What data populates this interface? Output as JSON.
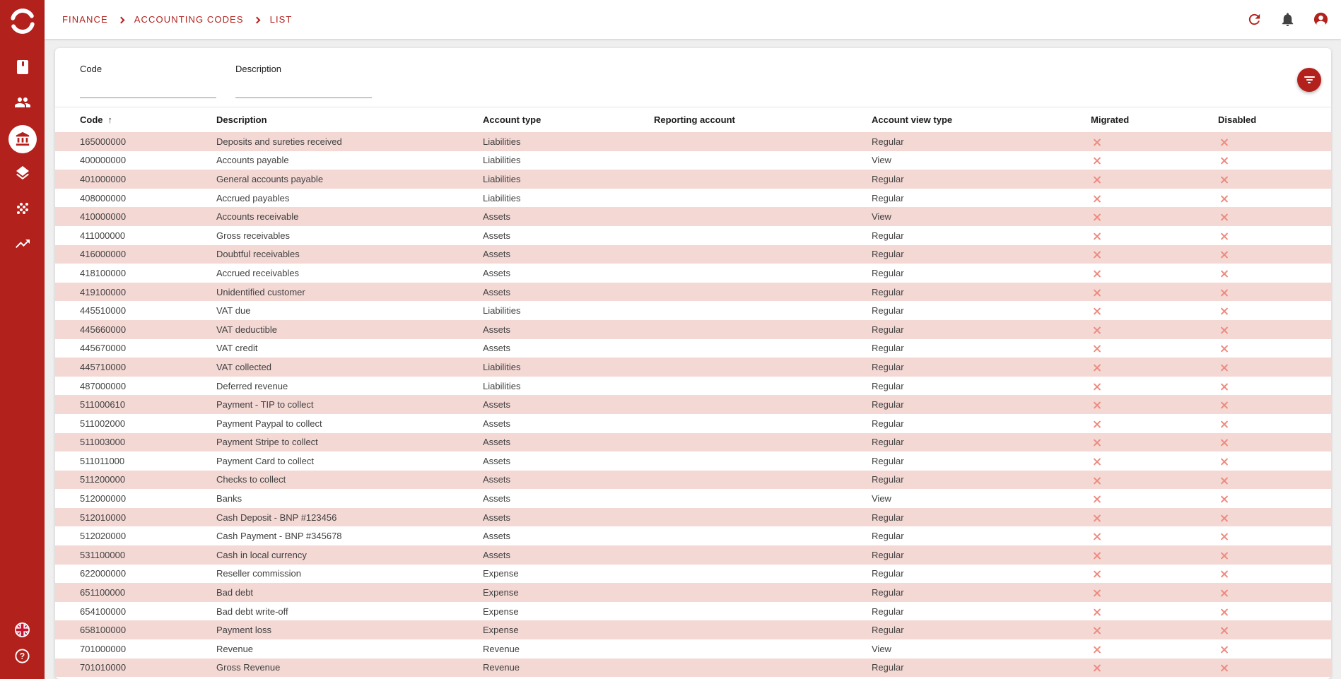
{
  "colors": {
    "brand": "#b3211c",
    "pink_row": "#f3d8d4",
    "x_mark": "#ee8a7f",
    "page_bg": "#efefef",
    "bell": "#424242",
    "header_text": "#1b1b1b",
    "row_text": "#414141"
  },
  "sidebar": {
    "logo_icon": "brand-logo",
    "items": [
      {
        "icon": "book-icon",
        "active": false
      },
      {
        "icon": "people-icon",
        "active": false
      },
      {
        "icon": "bank-icon",
        "active": true
      },
      {
        "icon": "layers-icon",
        "active": false
      },
      {
        "icon": "grain-icon",
        "active": false
      },
      {
        "icon": "trending-up-icon",
        "active": false
      }
    ],
    "bottom_items": [
      {
        "icon": "uk-flag-icon"
      },
      {
        "icon": "help-icon"
      }
    ]
  },
  "appbar": {
    "breadcrumb": [
      "FINANCE",
      "ACCOUNTING CODES",
      "LIST"
    ],
    "icons": [
      "refresh-icon",
      "notifications-icon",
      "account-icon"
    ]
  },
  "filters": {
    "fields": [
      {
        "label": "Code",
        "value": ""
      },
      {
        "label": "Description",
        "value": ""
      }
    ],
    "filter_button_icon": "filter-icon"
  },
  "table": {
    "sort_indicator": "↑",
    "columns": [
      {
        "label": "Code",
        "sorted": "ascending"
      },
      {
        "label": "Description"
      },
      {
        "label": "Account type"
      },
      {
        "label": "Reporting account"
      },
      {
        "label": "Account view type"
      },
      {
        "label": "Migrated"
      },
      {
        "label": "Disabled"
      }
    ],
    "rows": [
      {
        "code": "165000000",
        "description": "Deposits and sureties received",
        "account_type": "Liabilities",
        "reporting_account": "",
        "view_type": "Regular",
        "migrated": false,
        "disabled": false
      },
      {
        "code": "400000000",
        "description": "Accounts payable",
        "account_type": "Liabilities",
        "reporting_account": "",
        "view_type": "View",
        "migrated": false,
        "disabled": false
      },
      {
        "code": "401000000",
        "description": "General accounts payable",
        "account_type": "Liabilities",
        "reporting_account": "",
        "view_type": "Regular",
        "migrated": false,
        "disabled": false
      },
      {
        "code": "408000000",
        "description": "Accrued payables",
        "account_type": "Liabilities",
        "reporting_account": "",
        "view_type": "Regular",
        "migrated": false,
        "disabled": false
      },
      {
        "code": "410000000",
        "description": "Accounts receivable",
        "account_type": "Assets",
        "reporting_account": "",
        "view_type": "View",
        "migrated": false,
        "disabled": false
      },
      {
        "code": "411000000",
        "description": "Gross receivables",
        "account_type": "Assets",
        "reporting_account": "",
        "view_type": "Regular",
        "migrated": false,
        "disabled": false
      },
      {
        "code": "416000000",
        "description": "Doubtful receivables",
        "account_type": "Assets",
        "reporting_account": "",
        "view_type": "Regular",
        "migrated": false,
        "disabled": false
      },
      {
        "code": "418100000",
        "description": "Accrued receivables",
        "account_type": "Assets",
        "reporting_account": "",
        "view_type": "Regular",
        "migrated": false,
        "disabled": false
      },
      {
        "code": "419100000",
        "description": "Unidentified customer",
        "account_type": "Assets",
        "reporting_account": "",
        "view_type": "Regular",
        "migrated": false,
        "disabled": false
      },
      {
        "code": "445510000",
        "description": "VAT due",
        "account_type": "Liabilities",
        "reporting_account": "",
        "view_type": "Regular",
        "migrated": false,
        "disabled": false
      },
      {
        "code": "445660000",
        "description": "VAT deductible",
        "account_type": "Assets",
        "reporting_account": "",
        "view_type": "Regular",
        "migrated": false,
        "disabled": false
      },
      {
        "code": "445670000",
        "description": "VAT credit",
        "account_type": "Assets",
        "reporting_account": "",
        "view_type": "Regular",
        "migrated": false,
        "disabled": false
      },
      {
        "code": "445710000",
        "description": "VAT collected",
        "account_type": "Liabilities",
        "reporting_account": "",
        "view_type": "Regular",
        "migrated": false,
        "disabled": false
      },
      {
        "code": "487000000",
        "description": "Deferred revenue",
        "account_type": "Liabilities",
        "reporting_account": "",
        "view_type": "Regular",
        "migrated": false,
        "disabled": false
      },
      {
        "code": "511000610",
        "description": "Payment - TIP to collect",
        "account_type": "Assets",
        "reporting_account": "",
        "view_type": "Regular",
        "migrated": false,
        "disabled": false
      },
      {
        "code": "511002000",
        "description": "Payment Paypal to collect",
        "account_type": "Assets",
        "reporting_account": "",
        "view_type": "Regular",
        "migrated": false,
        "disabled": false
      },
      {
        "code": "511003000",
        "description": "Payment Stripe to collect",
        "account_type": "Assets",
        "reporting_account": "",
        "view_type": "Regular",
        "migrated": false,
        "disabled": false
      },
      {
        "code": "511011000",
        "description": "Payment Card to collect",
        "account_type": "Assets",
        "reporting_account": "",
        "view_type": "Regular",
        "migrated": false,
        "disabled": false
      },
      {
        "code": "511200000",
        "description": "Checks to collect",
        "account_type": "Assets",
        "reporting_account": "",
        "view_type": "Regular",
        "migrated": false,
        "disabled": false
      },
      {
        "code": "512000000",
        "description": "Banks",
        "account_type": "Assets",
        "reporting_account": "",
        "view_type": "View",
        "migrated": false,
        "disabled": false
      },
      {
        "code": "512010000",
        "description": "Cash Deposit - BNP #123456",
        "account_type": "Assets",
        "reporting_account": "",
        "view_type": "Regular",
        "migrated": false,
        "disabled": false
      },
      {
        "code": "512020000",
        "description": "Cash Payment - BNP #345678",
        "account_type": "Assets",
        "reporting_account": "",
        "view_type": "Regular",
        "migrated": false,
        "disabled": false
      },
      {
        "code": "531100000",
        "description": "Cash in local currency",
        "account_type": "Assets",
        "reporting_account": "",
        "view_type": "Regular",
        "migrated": false,
        "disabled": false
      },
      {
        "code": "622000000",
        "description": "Reseller commission",
        "account_type": "Expense",
        "reporting_account": "",
        "view_type": "Regular",
        "migrated": false,
        "disabled": false
      },
      {
        "code": "651100000",
        "description": "Bad debt",
        "account_type": "Expense",
        "reporting_account": "",
        "view_type": "Regular",
        "migrated": false,
        "disabled": false
      },
      {
        "code": "654100000",
        "description": "Bad debt write-off",
        "account_type": "Expense",
        "reporting_account": "",
        "view_type": "Regular",
        "migrated": false,
        "disabled": false
      },
      {
        "code": "658100000",
        "description": "Payment loss",
        "account_type": "Expense",
        "reporting_account": "",
        "view_type": "Regular",
        "migrated": false,
        "disabled": false
      },
      {
        "code": "701000000",
        "description": "Revenue",
        "account_type": "Revenue",
        "reporting_account": "",
        "view_type": "View",
        "migrated": false,
        "disabled": false
      },
      {
        "code": "701010000",
        "description": "Gross Revenue",
        "account_type": "Revenue",
        "reporting_account": "",
        "view_type": "Regular",
        "migrated": false,
        "disabled": false
      }
    ]
  }
}
